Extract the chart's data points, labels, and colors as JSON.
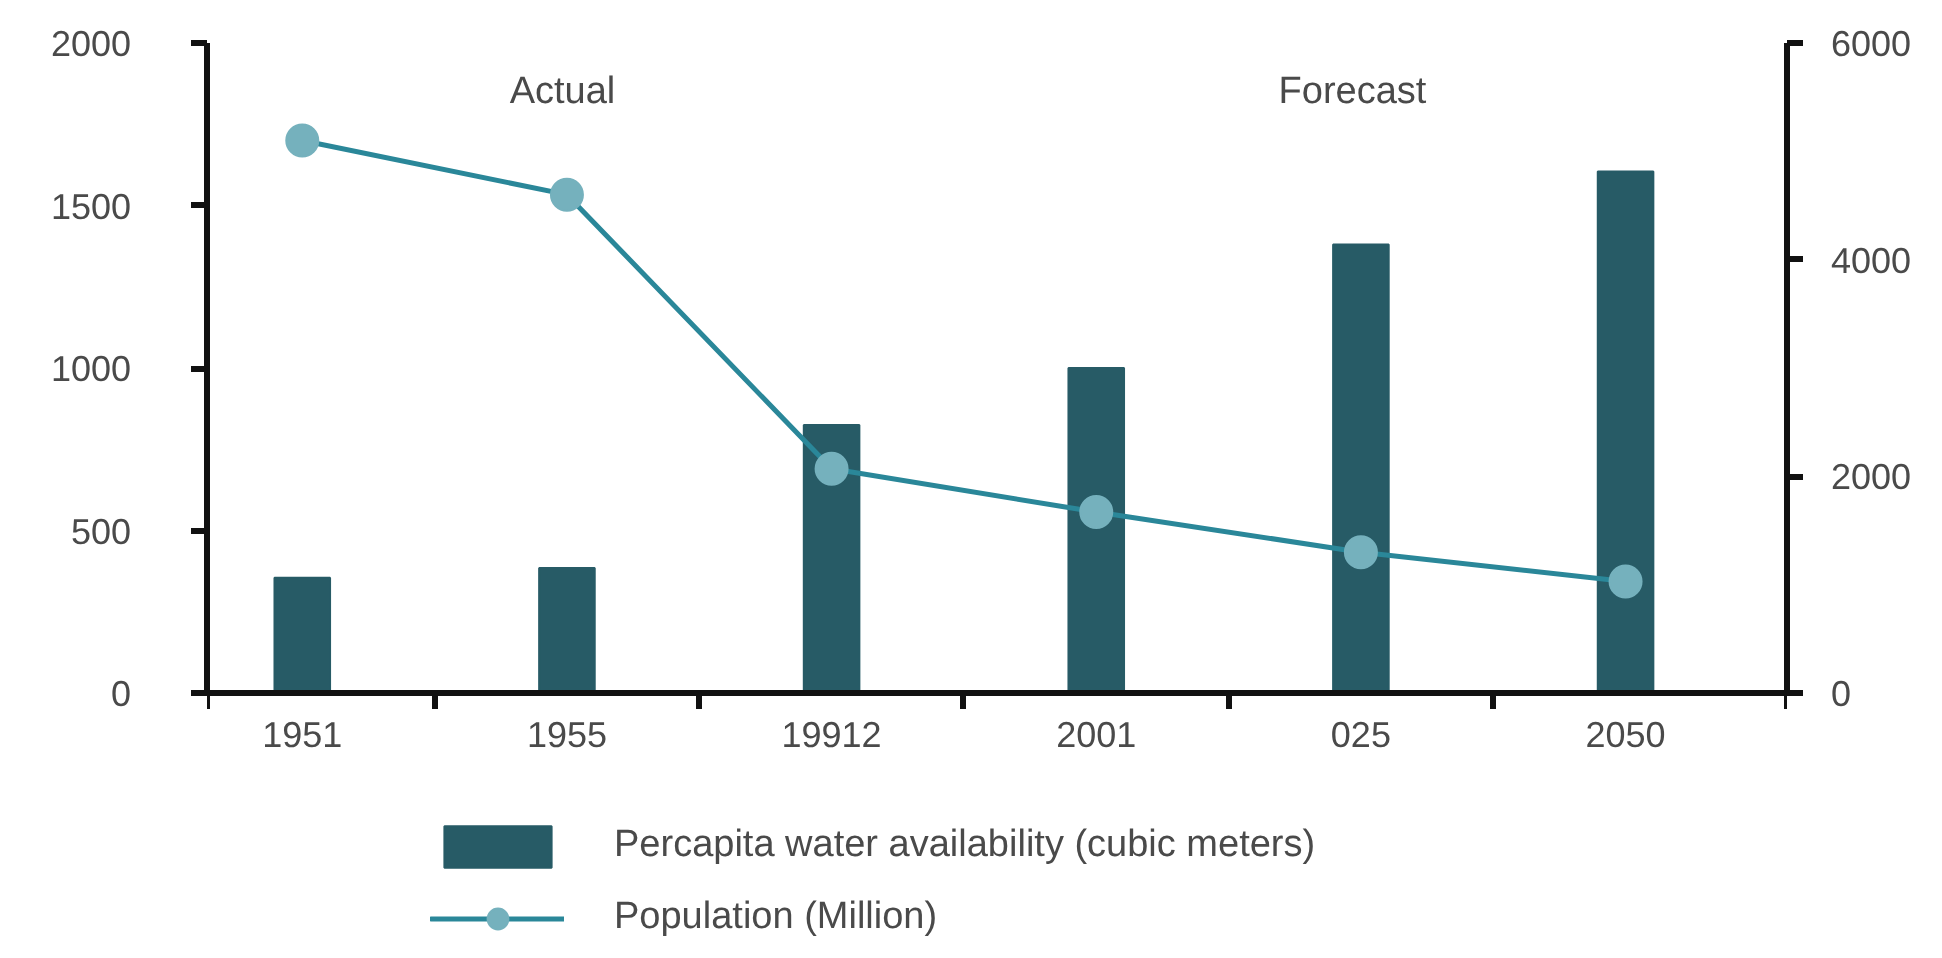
{
  "chart_data": {
    "type": "bar",
    "categories": [
      "1951",
      "1955",
      "19912",
      "2001",
      "025",
      "2050"
    ],
    "series": [
      {
        "name": "Percapita water availability (cubic meters)",
        "color": "#275b66",
        "values": [
          355,
          385,
          825,
          1000,
          1380,
          1605
        ]
      },
      {
        "name": "Population (Million)",
        "type": "line",
        "axis": "y2",
        "color": "#2a8799",
        "values": [
          5100,
          4600,
          2070,
          1670,
          1300,
          1030
        ]
      }
    ],
    "ylim": [
      0,
      2000
    ],
    "yticks": [
      0,
      500,
      1000,
      1500,
      2000
    ],
    "y2lim": [
      0,
      6000
    ],
    "y2ticks": [
      0,
      2000,
      4000,
      6000
    ],
    "annotations": [
      "Actual",
      "Forecast"
    ],
    "legend": "bottom",
    "grid": false,
    "marker": "circle",
    "line_style": "solid"
  }
}
